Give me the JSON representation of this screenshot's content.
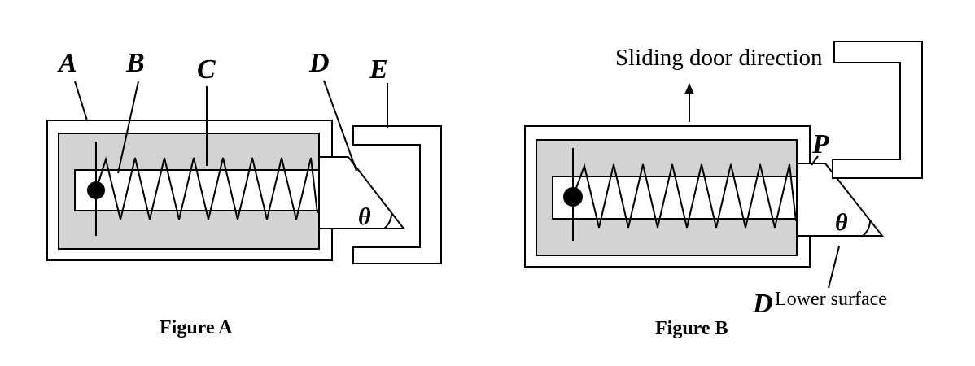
{
  "figure_a": {
    "label_a": "A",
    "label_b": "B",
    "label_c": "C",
    "label_d": "D",
    "label_e": "E",
    "theta": "θ",
    "caption": "Figure A"
  },
  "figure_b": {
    "label_p": "P",
    "label_d": "D",
    "theta": "θ",
    "sliding_door_direction": "Sliding door direction",
    "lower_surface": "Lower surface",
    "caption": "Figure B"
  }
}
